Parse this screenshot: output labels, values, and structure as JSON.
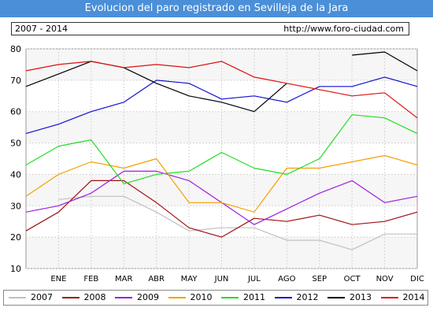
{
  "header": {
    "title": "Evolucion del paro registrado en Sevilleja de la Jara",
    "range": "2007 - 2014",
    "url": "http://www.foro-ciudad.com"
  },
  "chart_data": {
    "type": "line",
    "title": "Evolucion del paro registrado en Sevilleja de la Jara",
    "xlabel": "",
    "ylabel": "",
    "categories": [
      "",
      "ENE",
      "FEB",
      "MAR",
      "ABR",
      "MAY",
      "JUN",
      "JUL",
      "AGO",
      "SEP",
      "OCT",
      "NOV",
      "DIC"
    ],
    "ylim": [
      10,
      80
    ],
    "yticks": [
      10,
      20,
      30,
      40,
      50,
      60,
      70,
      80
    ],
    "grid": true,
    "legend_position": "bottom",
    "series": [
      {
        "name": "2007",
        "color": "#c0c0c0",
        "values": [
          null,
          32,
          33,
          33,
          28,
          22,
          23,
          23,
          19,
          19,
          16,
          21,
          21
        ]
      },
      {
        "name": "2008",
        "color": "#a01010",
        "values": [
          22,
          28,
          38,
          38,
          31,
          23,
          20,
          26,
          25,
          27,
          24,
          25,
          28
        ]
      },
      {
        "name": "2009",
        "color": "#9b1fe0",
        "values": [
          28,
          30,
          34,
          41,
          41,
          38,
          31,
          24,
          29,
          34,
          38,
          31,
          33
        ]
      },
      {
        "name": "2010",
        "color": "#f5a000",
        "values": [
          33,
          40,
          44,
          42,
          45,
          31,
          31,
          28,
          42,
          42,
          44,
          46,
          43
        ]
      },
      {
        "name": "2011",
        "color": "#22dd22",
        "values": [
          43,
          49,
          51,
          37,
          40,
          41,
          47,
          42,
          40,
          45,
          59,
          58,
          53
        ]
      },
      {
        "name": "2012",
        "color": "#1010d0",
        "values": [
          53,
          56,
          60,
          63,
          70,
          69,
          64,
          65,
          63,
          68,
          68,
          71,
          68
        ]
      },
      {
        "name": "2013",
        "color": "#000000",
        "values": [
          68,
          72,
          76,
          74,
          69,
          65,
          63,
          60,
          69,
          null,
          78,
          79,
          73
        ]
      },
      {
        "name": "2014",
        "color": "#e01010",
        "values": [
          73,
          75,
          76,
          74,
          75,
          74,
          76,
          71,
          69,
          67,
          65,
          66,
          58
        ]
      }
    ]
  }
}
